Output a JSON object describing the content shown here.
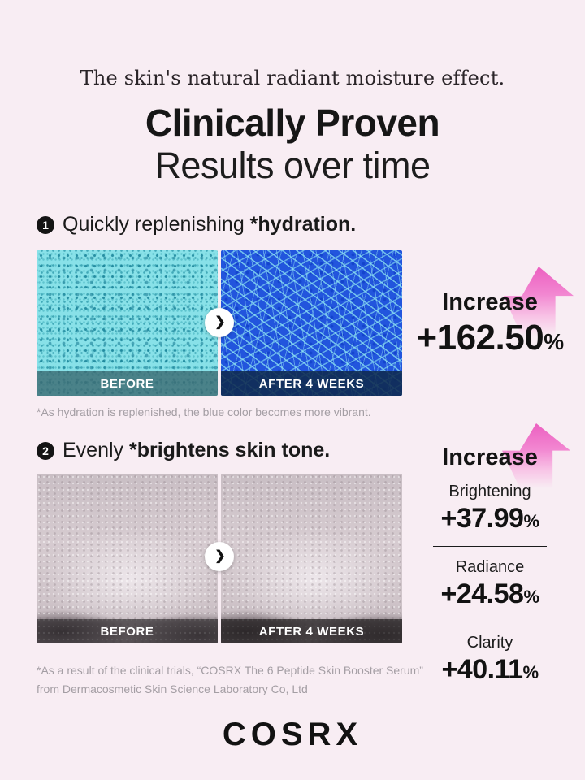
{
  "page": {
    "tagline": "The skin's natural radiant moisture effect.",
    "title_bold": "Clinically Proven",
    "title_light": "Results over time",
    "brand": "COSRX",
    "background_color": "#f8edf3",
    "accent_pink": "#ec5fc0",
    "icons": {
      "chevron_right": "❯"
    }
  },
  "section1": {
    "number": "1",
    "heading_regular": "Quickly replenishing ",
    "heading_bold": "*hydration.",
    "before_label": "BEFORE",
    "after_label": "AFTER 4 WEEKS",
    "increase_label": "Increase",
    "increase_value": "+162.50",
    "increase_unit": "%",
    "footnote": "*As hydration is replenished, the blue color becomes more vibrant."
  },
  "section2": {
    "number": "2",
    "heading_regular": "Evenly ",
    "heading_bold": "*brightens skin tone.",
    "before_label": "BEFORE",
    "after_label": "AFTER 4 WEEKS",
    "increase_label": "Increase",
    "stats": [
      {
        "label": "Brightening",
        "value": "+37.99",
        "unit": "%"
      },
      {
        "label": "Radiance",
        "value": "+24.58",
        "unit": "%"
      },
      {
        "label": "Clarity",
        "value": "+40.11",
        "unit": "%"
      }
    ],
    "footnote_line1": "*As a result of the clinical trials, “COSRX The 6 Peptide Skin Booster Serum”",
    "footnote_line2": "from Dermacosmetic Skin Science Laboratory Co, Ltd"
  }
}
